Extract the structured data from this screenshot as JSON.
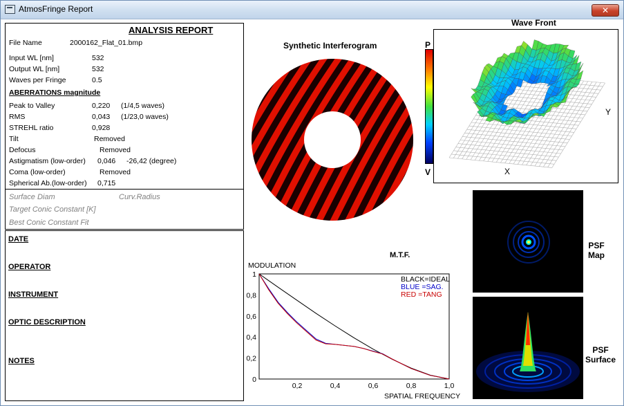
{
  "window": {
    "title": "AtmosFringe  Report",
    "close_label": "✕"
  },
  "report": {
    "title": "ANALYSIS  REPORT",
    "file_name_label": "File Name",
    "file_name": "2000162_Flat_01.bmp",
    "input_wl_label": "Input  WL [nm]",
    "input_wl": "532",
    "output_wl_label": "Output WL [nm]",
    "output_wl": "532",
    "waves_label": "Waves per Fringe",
    "waves": "0.5",
    "aberrations_heading": "ABERRATIONS magnitude",
    "ptv_label": "Peak to Valley",
    "ptv": "0,220",
    "ptv_waves": "(1/4,5 waves)",
    "rms_label": "RMS",
    "rms": "0,043",
    "rms_waves": "(1/23,0 waves)",
    "strehl_label": "STREHL ratio",
    "strehl": "0,928",
    "tilt_label": "Tilt",
    "tilt": "Removed",
    "defocus_label": "Defocus",
    "defocus": "Removed",
    "astig_label": "Astigmatism  (low-order)",
    "astig": "0,046",
    "astig_angle": "-26,42  (degree)",
    "coma_label": "Coma          (low-order)",
    "coma": "Removed",
    "spherical_label": "Spherical Ab.(low-order)",
    "spherical": "0,715",
    "surface_diam_label": "Surface Diam",
    "curv_radius_label": "Curv.Radius",
    "target_conic_label": "Target Conic Constant [K]",
    "best_conic_label": "Best Conic Constant Fit"
  },
  "info": {
    "date_label": "DATE",
    "operator_label": "OPERATOR",
    "instrument_label": "INSTRUMENT",
    "optic_label": "OPTIC DESCRIPTION",
    "notes_label": "NOTES"
  },
  "interferogram": {
    "title": "Synthetic Interferogram",
    "fringe_count": 16
  },
  "wavefront": {
    "title": "Wave Front",
    "scale_top": "P",
    "scale_bottom": "V",
    "axis_x": "X",
    "axis_y": "Y"
  },
  "psf": {
    "map_label_1": "PSF",
    "map_label_2": "Map",
    "surface_label_1": "PSF",
    "surface_label_2": "Surface"
  },
  "chart_data": {
    "type": "line",
    "title": "M.T.F.",
    "ylabel": "MODULATION",
    "xlabel": "SPATIAL FREQUENCY",
    "xlim": [
      0,
      1
    ],
    "ylim": [
      0,
      1
    ],
    "x_ticks": [
      "0,2",
      "0,4",
      "0,6",
      "0,8",
      "1,0"
    ],
    "y_ticks": [
      "0",
      "0,2",
      "0,4",
      "0,6",
      "0,8",
      "1"
    ],
    "legend": [
      "BLACK=IDEAL",
      "BLUE  =SAG.",
      "RED    =TANG"
    ],
    "series": [
      {
        "name": "IDEAL",
        "color": "#000000",
        "x": [
          0,
          0.1,
          0.2,
          0.3,
          0.4,
          0.5,
          0.6,
          0.7,
          0.8,
          0.9,
          1.0
        ],
        "y": [
          1.0,
          0.873,
          0.748,
          0.624,
          0.505,
          0.391,
          0.284,
          0.188,
          0.104,
          0.037,
          0
        ]
      },
      {
        "name": "SAG.",
        "color": "#0000c8",
        "x": [
          0,
          0.05,
          0.1,
          0.15,
          0.2,
          0.25,
          0.3,
          0.35,
          0.4,
          0.45,
          0.5,
          0.55,
          0.6,
          0.65,
          0.7,
          0.8,
          0.9,
          1.0
        ],
        "y": [
          1.0,
          0.86,
          0.73,
          0.63,
          0.54,
          0.46,
          0.38,
          0.34,
          0.33,
          0.32,
          0.31,
          0.29,
          0.265,
          0.24,
          0.19,
          0.1,
          0.035,
          0
        ]
      },
      {
        "name": "TANG",
        "color": "#c80000",
        "x": [
          0,
          0.05,
          0.1,
          0.15,
          0.2,
          0.25,
          0.3,
          0.35,
          0.4,
          0.45,
          0.5,
          0.55,
          0.6,
          0.65,
          0.7,
          0.8,
          0.9,
          1.0
        ],
        "y": [
          1.0,
          0.85,
          0.72,
          0.62,
          0.53,
          0.45,
          0.37,
          0.335,
          0.33,
          0.32,
          0.31,
          0.29,
          0.262,
          0.238,
          0.19,
          0.1,
          0.035,
          0
        ]
      }
    ]
  }
}
